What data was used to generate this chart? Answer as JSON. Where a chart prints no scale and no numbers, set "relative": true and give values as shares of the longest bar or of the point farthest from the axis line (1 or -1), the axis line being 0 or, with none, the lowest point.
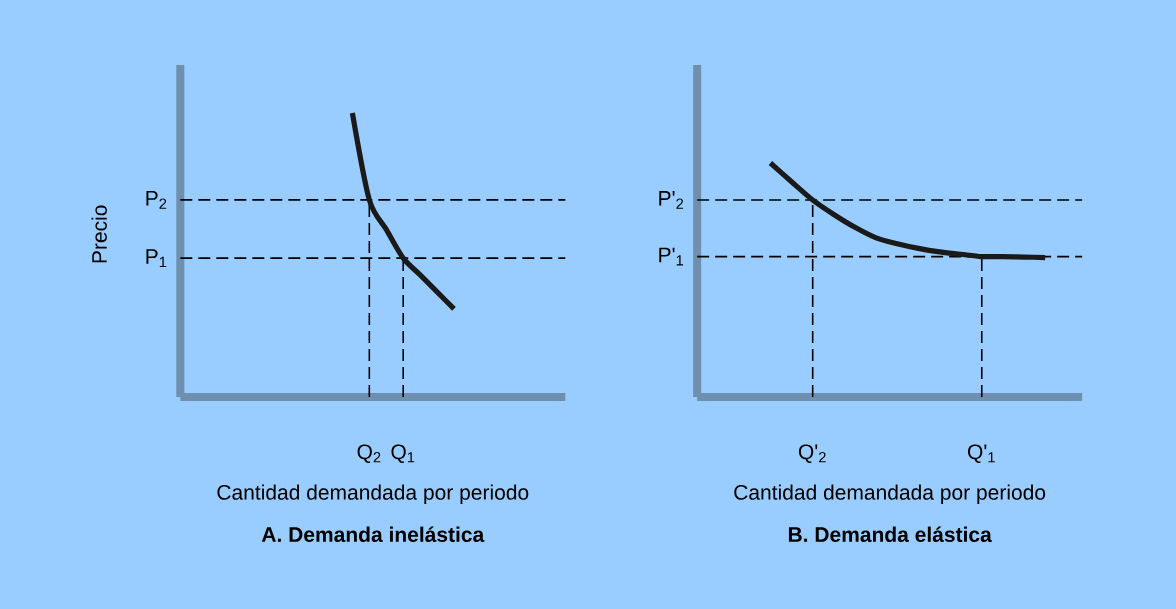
{
  "chart_data": [
    {
      "type": "line",
      "relative": true,
      "title": "A. Demanda inelástica",
      "xlabel": "Cantidad demandada por periodo",
      "ylabel": "Precio",
      "categories": [
        null,
        null,
        null,
        null,
        null,
        null,
        null,
        null,
        null,
        null,
        null,
        "Q$_{2}$",
        null,
        "Q$_{1}$",
        null,
        null,
        null,
        null,
        null,
        null,
        null,
        null,
        null
      ],
      "values": [
        null,
        null,
        null,
        null,
        null,
        null,
        null,
        null,
        null,
        null,
        1,
        0.694,
        0.59,
        0.489,
        0.43,
        0.37,
        0.31,
        null,
        null,
        null,
        null,
        null,
        null
      ],
      "color": "#1a1a1a",
      "ref_lines": [
        {
          "axis": "y",
          "value": 0.694,
          "label": "P$_{2}$",
          "line_style": "dashed"
        },
        {
          "axis": "y",
          "value": 0.489,
          "label": "P$_{1}$",
          "line_style": "dashed"
        },
        {
          "axis": "x",
          "value": "Q$_{2}$",
          "line_style": "dashed"
        },
        {
          "axis": "x",
          "value": "Q$_{1}$",
          "line_style": "dashed"
        }
      ]
    },
    {
      "type": "line",
      "relative": true,
      "title": "B. Demanda elástica",
      "xlabel": "Cantidad demandada por periodo",
      "categories": [
        null,
        null,
        null,
        null,
        null,
        "Q'$_{2}$",
        null,
        null,
        null,
        null,
        null,
        null,
        null,
        "Q'$_{1}$",
        null,
        null,
        null,
        null
      ],
      "values": [
        null,
        null,
        null,
        1,
        0.92,
        0.842,
        0.78,
        0.725,
        0.68,
        0.655,
        0.635,
        0.62,
        0.61,
        0.6,
        0.6,
        0.598,
        0.596,
        null
      ],
      "color": "#1a1a1a",
      "ref_lines": [
        {
          "axis": "y",
          "value": 0.842,
          "label": "P'$_{2}$",
          "line_style": "dashed"
        },
        {
          "axis": "y",
          "value": 0.6,
          "label": "P'$_{1}$",
          "line_style": "dashed"
        },
        {
          "axis": "x",
          "value": "Q'$_{2}$",
          "line_style": "dashed"
        },
        {
          "axis": "x",
          "value": "Q'$_{1}$",
          "line_style": "dashed"
        }
      ]
    }
  ]
}
